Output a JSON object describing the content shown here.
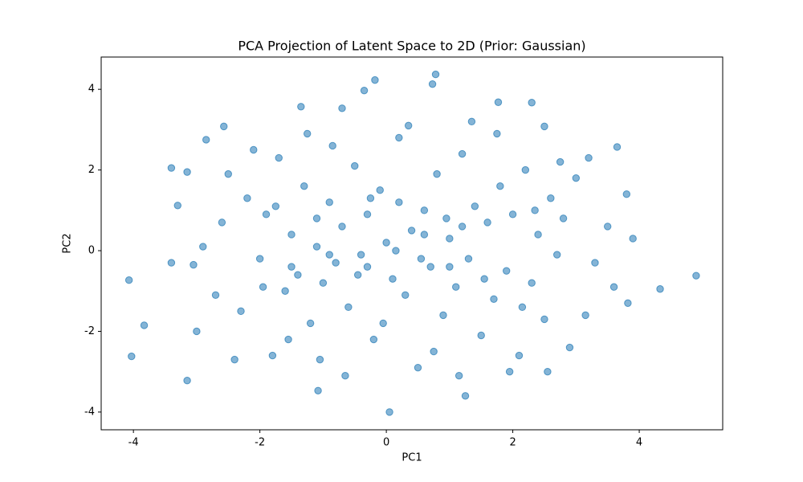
{
  "chart_data": {
    "type": "scatter",
    "title": "PCA Projection of Latent Space to 2D (Prior: Gaussian)",
    "x_label": "PC1",
    "y_label": "PC2",
    "xlim": [
      -4.51,
      5.32
    ],
    "ylim": [
      -4.44,
      4.8
    ],
    "xticks": [
      -4,
      -2,
      0,
      2,
      4
    ],
    "yticks": [
      -4,
      -2,
      0,
      2,
      4
    ],
    "grid": false,
    "series": [
      {
        "color": "#1f77b4",
        "x": [
          -4.07,
          -4.03,
          -3.83,
          -3.4,
          -3.3,
          -3.15,
          4.9,
          4.33,
          3.9,
          3.82,
          3.65,
          3.8,
          0.78,
          -0.18,
          0.05,
          -1.35,
          1.77,
          2.3,
          1.25,
          -1.08,
          -2.57,
          -2.85,
          0.73,
          -0.35,
          -0.7,
          2.5,
          3.2,
          3.15,
          -3.0,
          -3.15,
          -3.05,
          -2.6,
          -2.3,
          -2.2,
          -2.0,
          -1.9,
          -1.8,
          -1.7,
          -1.6,
          -1.5,
          -1.4,
          -1.3,
          -1.2,
          -1.1,
          -1.0,
          -0.9,
          -0.8,
          -0.7,
          -0.6,
          -0.5,
          -0.4,
          -0.3,
          -0.2,
          -0.1,
          0.0,
          0.1,
          0.2,
          0.3,
          0.4,
          0.5,
          0.6,
          0.7,
          0.8,
          0.9,
          1.0,
          1.1,
          1.2,
          1.3,
          1.4,
          1.5,
          1.6,
          1.7,
          1.8,
          1.9,
          2.0,
          2.1,
          2.2,
          2.3,
          2.4,
          2.5,
          2.6,
          2.7,
          2.8,
          2.9,
          3.0,
          3.3,
          3.5,
          -2.7,
          -2.5,
          -2.4,
          -2.1,
          -1.95,
          -1.75,
          -1.55,
          -1.25,
          -1.05,
          -0.85,
          -0.65,
          -0.45,
          -0.25,
          -0.05,
          0.15,
          0.35,
          0.55,
          0.75,
          0.95,
          1.15,
          1.35,
          1.55,
          1.75,
          1.95,
          2.15,
          2.35,
          2.55,
          2.75,
          -3.4,
          -2.9,
          3.6,
          -0.9,
          0.6,
          -1.5,
          1.2,
          -0.3,
          0.2,
          -1.1,
          1.0
        ],
        "values": [
          -0.73,
          -2.62,
          -1.85,
          2.05,
          1.12,
          -3.22,
          -0.62,
          -0.95,
          0.3,
          -1.3,
          2.57,
          1.4,
          4.37,
          4.23,
          -4.0,
          3.57,
          3.68,
          3.67,
          -3.6,
          -3.47,
          3.08,
          2.75,
          4.13,
          3.97,
          3.53,
          3.08,
          2.3,
          -1.6,
          -2.0,
          1.95,
          -0.35,
          0.7,
          -1.5,
          1.3,
          -0.2,
          0.9,
          -2.6,
          2.3,
          -1.0,
          0.4,
          -0.6,
          1.6,
          -1.8,
          0.1,
          -0.8,
          1.2,
          -0.3,
          0.6,
          -1.4,
          2.1,
          -0.1,
          0.9,
          -2.2,
          1.5,
          0.2,
          -0.7,
          2.8,
          -1.1,
          0.5,
          -2.9,
          1.0,
          -0.4,
          1.9,
          -1.6,
          0.3,
          -0.9,
          2.4,
          -0.2,
          1.1,
          -2.1,
          0.7,
          -1.2,
          1.6,
          -0.5,
          0.9,
          -2.6,
          2.0,
          -0.8,
          0.4,
          -1.7,
          1.3,
          -0.1,
          0.8,
          -2.4,
          1.8,
          -0.3,
          0.6,
          -1.1,
          1.9,
          -2.7,
          2.5,
          -0.9,
          1.1,
          -2.2,
          2.9,
          -2.7,
          2.6,
          -3.1,
          -0.6,
          1.3,
          -1.8,
          0.0,
          3.1,
          -0.2,
          -2.5,
          0.8,
          -3.1,
          3.2,
          -0.7,
          2.9,
          -3.0,
          -1.4,
          1.0,
          -3.0,
          2.2,
          -0.3,
          0.1,
          -0.9,
          -0.1,
          0.4,
          -0.4,
          0.6,
          -0.4,
          1.2,
          0.8,
          -0.4
        ]
      }
    ]
  }
}
